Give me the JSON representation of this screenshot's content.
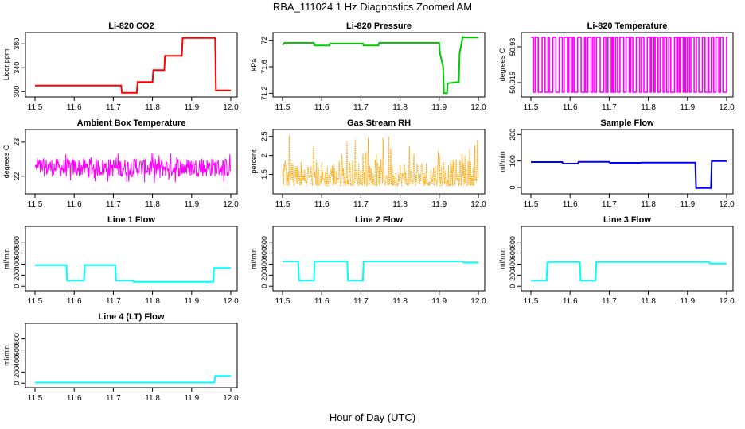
{
  "title": "RBA_111024  1 Hz Diagnostics Zoomed AM",
  "xlabel": "Hour of Day (UTC)",
  "chart_data": [
    {
      "type": "line",
      "title": "Li-820 CO2",
      "ylabel": "Licor ppm",
      "color": "#ff0000",
      "xlim": [
        11.5,
        12.0
      ],
      "ylim": [
        295,
        395
      ],
      "yticks": [
        300,
        340,
        380
      ],
      "x": [
        11.5,
        11.72,
        11.722,
        11.76,
        11.762,
        11.8,
        11.802,
        11.83,
        11.832,
        11.875,
        11.877,
        11.96,
        11.962,
        12.0
      ],
      "y": [
        310,
        310,
        298,
        298,
        316,
        316,
        336,
        336,
        360,
        360,
        390,
        390,
        302,
        302
      ]
    },
    {
      "type": "line",
      "title": "Li-820 Pressure",
      "ylabel": "kPa",
      "color": "#00cc00",
      "xlim": [
        11.5,
        12.0
      ],
      "ylim": [
        71.18,
        72.08
      ],
      "yticks": [
        71.2,
        71.6,
        72.0
      ],
      "x": [
        11.5,
        11.505,
        11.58,
        11.582,
        11.62,
        11.622,
        11.705,
        11.707,
        11.745,
        11.747,
        11.9,
        11.902,
        11.91,
        11.912,
        11.92,
        11.922,
        11.95,
        11.952,
        11.96,
        11.962,
        12.0
      ],
      "y": [
        71.93,
        71.96,
        71.96,
        71.92,
        71.92,
        71.95,
        71.95,
        71.92,
        71.92,
        71.96,
        71.96,
        71.8,
        71.6,
        71.2,
        71.2,
        71.35,
        71.37,
        71.8,
        72.05,
        72.04,
        72.04
      ]
    },
    {
      "type": "line",
      "title": "Li-820 Temperature",
      "ylabel": "degrees C",
      "color": "#ff00ff",
      "xlim": [
        11.5,
        12.0
      ],
      "ylim": [
        50.91,
        50.935
      ],
      "yticks": [
        50.915,
        50.93
      ],
      "pattern": "jumps",
      "yvals": [
        50.911,
        50.934
      ]
    },
    {
      "type": "line",
      "title": "Ambient Box Temperature",
      "ylabel": "degrees C",
      "color": "#ff00ff",
      "xlim": [
        11.5,
        12.0
      ],
      "ylim": [
        21.55,
        23.3
      ],
      "yticks": [
        22.0,
        23.0
      ],
      "pattern": "noise",
      "base": 22.25,
      "amp": 0.45
    },
    {
      "type": "scatter",
      "title": "Gas Stream RH",
      "ylabel": "percent",
      "color": "#ffa500",
      "xlim": [
        11.5,
        12.0
      ],
      "ylim": [
        1.05,
        2.62
      ],
      "yticks": [
        1.5,
        2.0,
        2.5
      ],
      "pattern": "spikes",
      "base": 1.45,
      "amp": 0.85
    },
    {
      "type": "line",
      "title": "Sample Flow",
      "ylabel": "ml/min",
      "color": "#0000ff",
      "xlim": [
        11.5,
        12.0
      ],
      "ylim": [
        -15,
        210
      ],
      "yticks": [
        0,
        100,
        200
      ],
      "x": [
        11.5,
        11.58,
        11.582,
        11.62,
        11.622,
        11.7,
        11.702,
        11.78,
        11.782,
        11.92,
        11.922,
        11.96,
        11.962,
        12.0
      ],
      "y": [
        96,
        96,
        90,
        90,
        97,
        97,
        93,
        93,
        94,
        94,
        -2,
        -2,
        100,
        100
      ]
    },
    {
      "type": "line",
      "title": "Line 1 Flow",
      "ylabel": "ml/min",
      "color": "#00ffff",
      "xlim": [
        11.5,
        12.0
      ],
      "ylim": [
        -40,
        1040
      ],
      "yticks": [
        0,
        200,
        400,
        600,
        800
      ],
      "x": [
        11.5,
        11.58,
        11.582,
        11.625,
        11.627,
        11.705,
        11.707,
        11.75,
        11.752,
        11.955,
        11.957,
        12.0
      ],
      "y": [
        380,
        380,
        100,
        100,
        380,
        380,
        100,
        100,
        80,
        80,
        330,
        330
      ]
    },
    {
      "type": "line",
      "title": "Line 2 Flow",
      "ylabel": "ml/min",
      "color": "#00ffff",
      "xlim": [
        11.5,
        12.0
      ],
      "ylim": [
        -40,
        1040
      ],
      "yticks": [
        0,
        200,
        400,
        600,
        800
      ],
      "x": [
        11.5,
        11.54,
        11.542,
        11.58,
        11.582,
        11.665,
        11.667,
        11.705,
        11.707,
        11.96,
        11.962,
        12.0
      ],
      "y": [
        450,
        450,
        100,
        100,
        450,
        450,
        100,
        100,
        450,
        450,
        430,
        430
      ]
    },
    {
      "type": "line",
      "title": "Line 3 Flow",
      "ylabel": "ml/min",
      "color": "#00ffff",
      "xlim": [
        11.5,
        12.0
      ],
      "ylim": [
        -40,
        1040
      ],
      "yticks": [
        0,
        200,
        400,
        600,
        800
      ],
      "x": [
        11.5,
        11.54,
        11.542,
        11.625,
        11.627,
        11.665,
        11.667,
        11.955,
        11.957,
        12.0
      ],
      "y": [
        100,
        100,
        440,
        440,
        100,
        100,
        440,
        440,
        410,
        410
      ]
    },
    {
      "type": "line",
      "title": "Line 4 (LT) Flow",
      "ylabel": "ml/min",
      "color": "#00ffff",
      "xlim": [
        11.5,
        12.0
      ],
      "ylim": [
        -40,
        1040
      ],
      "yticks": [
        0,
        200,
        400,
        600,
        800
      ],
      "x": [
        11.5,
        11.958,
        11.96,
        12.0
      ],
      "y": [
        10,
        10,
        130,
        130
      ]
    }
  ],
  "xticks": [
    11.5,
    11.6,
    11.7,
    11.8,
    11.9,
    12.0
  ]
}
